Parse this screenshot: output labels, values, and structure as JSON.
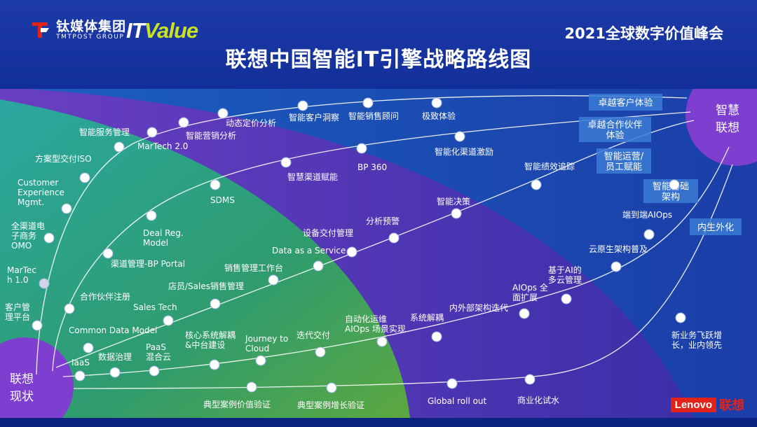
{
  "header": {
    "tmt_name": "钛媒体集团",
    "tmt_sub": "TMTPOST GROUP",
    "itvalue_it": "IT",
    "itvalue_value": "Value",
    "summit": "2021全球数字价值峰会",
    "title": "联想中国智能IT引擎战略路线图"
  },
  "corners": {
    "start_line1": "联想",
    "start_line2": "现状",
    "end_line1": "智慧",
    "end_line2": "联想"
  },
  "goal_tags": [
    {
      "lines": [
        "卓越客户体验"
      ]
    },
    {
      "lines": [
        "卓越合作伙伴",
        "体验"
      ]
    },
    {
      "lines": [
        "智能运营/",
        "员工赋能"
      ]
    },
    {
      "lines": [
        "智能基础",
        "架构"
      ]
    },
    {
      "lines": [
        "内生外化"
      ]
    }
  ],
  "milestones": [
    {
      "lines": [
        "客户管",
        "理平台"
      ]
    },
    {
      "lines": [
        "MarTec",
        "h 1.0"
      ]
    },
    {
      "lines": [
        "全渠道电",
        "子商务",
        "OMO"
      ]
    },
    {
      "lines": [
        "Customer",
        "Experience",
        "Mgmt."
      ]
    },
    {
      "lines": [
        "方案型交付ISO"
      ]
    },
    {
      "lines": [
        "智能服务管理"
      ]
    },
    {
      "lines": [
        "MarTech 2.0"
      ]
    },
    {
      "lines": [
        "智能营销分析"
      ]
    },
    {
      "lines": [
        "动态定价分析"
      ]
    },
    {
      "lines": [
        "智能客户洞察"
      ]
    },
    {
      "lines": [
        "智能销售顾问"
      ]
    },
    {
      "lines": [
        "极致体验"
      ]
    },
    {
      "lines": [
        "合作伙伴注册"
      ]
    },
    {
      "lines": [
        "渠道管理-BP Portal"
      ]
    },
    {
      "lines": [
        "Deal Reg.",
        "Model"
      ]
    },
    {
      "lines": [
        "SDMS"
      ]
    },
    {
      "lines": [
        "智慧渠道赋能"
      ]
    },
    {
      "lines": [
        "BP 360"
      ]
    },
    {
      "lines": [
        "智能化渠道激励"
      ]
    },
    {
      "lines": [
        "Common Data Model"
      ]
    },
    {
      "lines": [
        "Sales Tech"
      ]
    },
    {
      "lines": [
        "店员/Sales销售管理"
      ]
    },
    {
      "lines": [
        "销售管理工作台"
      ]
    },
    {
      "lines": [
        "Data as a Service"
      ]
    },
    {
      "lines": [
        "设备交付管理"
      ]
    },
    {
      "lines": [
        "分析预警"
      ]
    },
    {
      "lines": [
        "智能决策"
      ]
    },
    {
      "lines": [
        "智能绩效追踪"
      ]
    },
    {
      "lines": [
        "IaaS"
      ]
    },
    {
      "lines": [
        "数据治理"
      ]
    },
    {
      "lines": [
        "PaaS",
        "混合云"
      ]
    },
    {
      "lines": [
        "核心系统解耦",
        "&中台建设"
      ]
    },
    {
      "lines": [
        "Journey to",
        "Cloud"
      ]
    },
    {
      "lines": [
        "迭代交付"
      ]
    },
    {
      "lines": [
        "自动化运维",
        "AIOps 场景实现"
      ]
    },
    {
      "lines": [
        "系统解耦"
      ]
    },
    {
      "lines": [
        "内外部架构迭代"
      ]
    },
    {
      "lines": [
        "AIOps 全",
        "面扩展"
      ]
    },
    {
      "lines": [
        "基于AI的",
        "多云管理"
      ]
    },
    {
      "lines": [
        "云原生架构普及"
      ]
    },
    {
      "lines": [
        "端到端AIOps"
      ]
    },
    {
      "lines": [
        "典型案例价值验证"
      ]
    },
    {
      "lines": [
        "典型案例增长验证"
      ]
    },
    {
      "lines": [
        "Global roll out"
      ]
    },
    {
      "lines": [
        "商业化试水"
      ]
    },
    {
      "lines": [
        "新业务飞跃增",
        "长，业内领先"
      ]
    }
  ],
  "footer": {
    "lenovo_en": "Lenovo",
    "lenovo_cn": "联想"
  }
}
